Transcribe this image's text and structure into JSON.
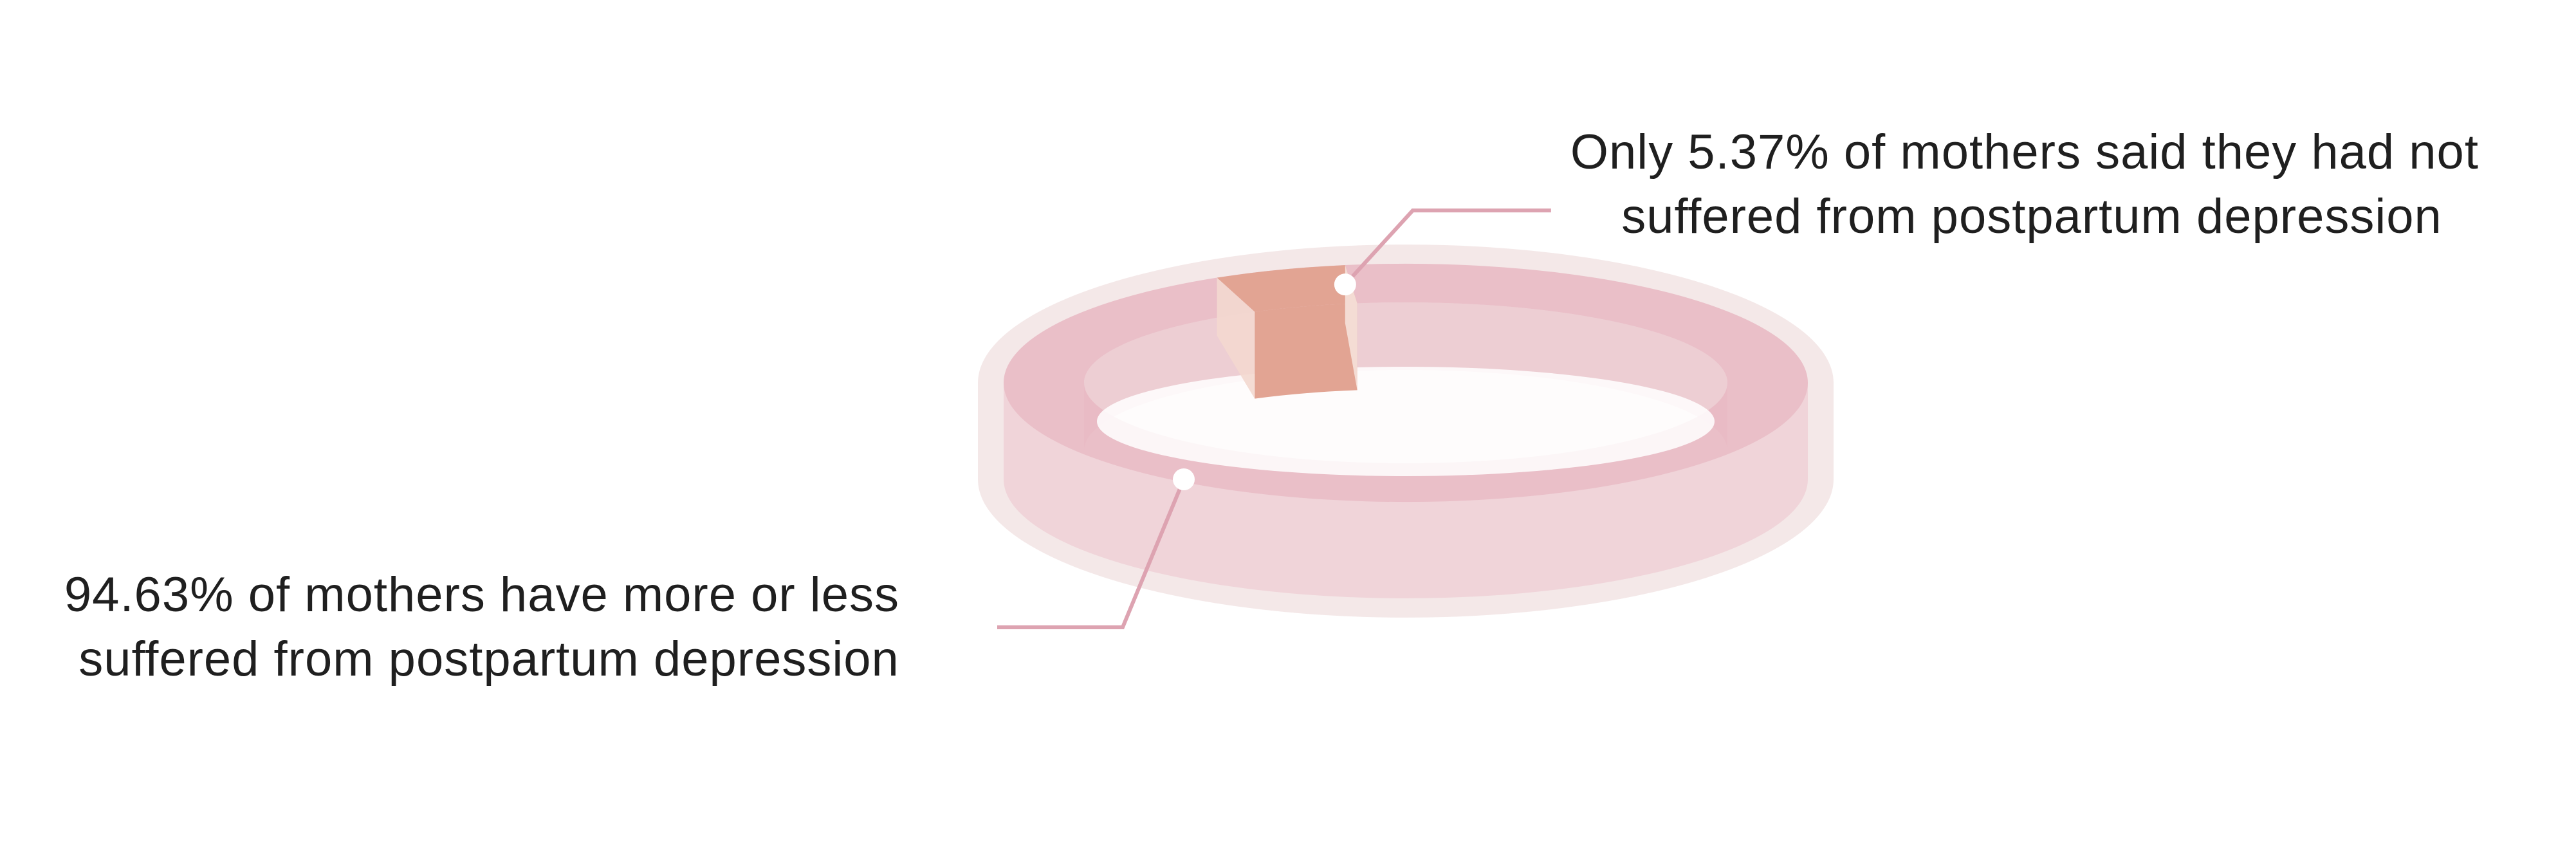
{
  "chart_data": {
    "type": "pie",
    "style": "3d-ring",
    "title": "",
    "colors": {
      "ring_base": "#e9c3cb",
      "ring_top": "#e8b7c2",
      "ring_inner": "#efd3d8",
      "halo": "#f2e4e4",
      "highlight": "#e2a493",
      "leader": "#dda3b1",
      "dot": "#ffffff"
    },
    "slices": [
      {
        "label_lines": [
          "Only 5.37% of mothers said they had not",
          "suffered from postpartum depression"
        ],
        "value": 5.37,
        "highlighted": true
      },
      {
        "label_lines": [
          "94.63% of mothers have more or less",
          "suffered from postpartum depression"
        ],
        "value": 94.63,
        "highlighted": false
      }
    ]
  }
}
